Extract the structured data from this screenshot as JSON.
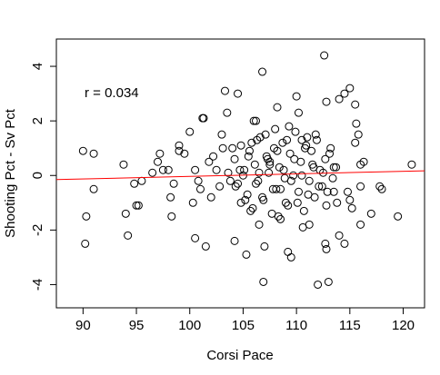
{
  "chart_data": {
    "type": "scatter",
    "x_label": "Corsi Pace",
    "y_label": "Shooting Pct - Sv Pct",
    "annotation": "r = 0.034",
    "annotation_color": "#ff0000",
    "xlim": [
      87.5,
      122
    ],
    "ylim": [
      -4.85,
      5.0
    ],
    "xticks": [
      90,
      95,
      100,
      105,
      110,
      115,
      120
    ],
    "yticks": [
      -4,
      -2,
      0,
      2,
      4
    ],
    "series": [
      {
        "color": "#000000",
        "x": [
          90,
          90.3,
          90.2,
          91,
          91,
          93.8,
          94,
          94.2,
          95,
          95.2,
          95.5,
          94.8,
          96.5,
          97,
          97.2,
          97.5,
          98,
          98.2,
          98.3,
          98.5,
          99,
          99,
          99.5,
          100,
          100.5,
          100.8,
          100.3,
          100.5,
          101,
          101.2,
          101.3,
          101.5,
          101.8,
          102,
          102.5,
          103,
          103.3,
          103.5,
          104,
          104.5,
          104.2,
          104.8,
          105,
          105.3,
          106,
          106.3,
          106.5,
          106.8,
          106.9,
          107,
          107.5,
          108,
          108.2,
          108.5,
          109,
          109.2,
          109.5,
          110,
          110.2,
          110.5,
          111,
          111.2,
          112,
          112.6,
          112.8,
          113,
          112.7,
          112.8,
          113.5,
          114,
          114.5,
          115,
          115.5,
          115.6,
          115.8,
          115.5,
          116,
          116.3,
          116,
          114.8,
          115,
          115.2,
          114.5,
          117,
          117.8,
          118,
          119.5,
          120.8,
          113.8,
          114,
          116,
          104.2,
          104.5,
          104.8,
          105.1,
          105.4,
          105.6,
          105.9,
          106.1,
          106.4,
          106.6,
          106.9,
          107.2,
          107.4,
          107.7,
          107.9,
          108.1,
          108.4,
          108.7,
          108.9,
          109.2,
          109.4,
          109.7,
          109.9,
          110.2,
          110.4,
          110.7,
          110.9,
          111.2,
          111.4,
          111.7,
          111.9,
          112.2,
          112.4,
          112.7,
          112.9,
          113.2,
          113.4,
          113.7,
          104.3,
          104.7,
          105.2,
          105.5,
          105.8,
          106.2,
          106.5,
          106.8,
          107.1,
          107.5,
          107.8,
          108.2,
          108.5,
          108.8,
          109.1,
          109.5,
          109.8,
          110.1,
          110.5,
          110.8,
          111.1,
          111.5,
          111.8,
          112.1,
          112.5,
          112.8,
          113.1,
          113.5,
          103.8,
          102.8,
          102.2,
          103.1,
          103.6,
          109.3,
          110.6,
          111.6,
          108.3,
          107.3,
          106.2,
          105.7
        ],
        "y": [
          0.9,
          -1.5,
          -2.5,
          0.8,
          -0.5,
          0.4,
          -1.4,
          -2.2,
          -1.1,
          -1.1,
          -0.2,
          -0.3,
          0.1,
          0.5,
          0.8,
          0.2,
          0.2,
          -0.8,
          -1.5,
          -0.3,
          1.1,
          0.9,
          0.8,
          1.6,
          0.2,
          -0.2,
          -1.0,
          -2.3,
          -0.5,
          2.1,
          2.1,
          -2.6,
          0.5,
          -0.8,
          0.2,
          1.5,
          3.1,
          2.3,
          1.0,
          3.0,
          -2.4,
          -1.0,
          0.0,
          -2.9,
          2.0,
          1.3,
          -1.8,
          3.8,
          -3.9,
          -2.6,
          0.5,
          1.7,
          2.5,
          -0.5,
          -1.0,
          -2.8,
          -3.0,
          2.9,
          2.3,
          1.3,
          1.4,
          -1.8,
          -4.0,
          4.4,
          2.7,
          -3.9,
          -2.5,
          -2.7,
          0.3,
          2.8,
          3.0,
          3.2,
          2.6,
          1.9,
          1.5,
          1.2,
          0.4,
          0.5,
          -0.4,
          -0.6,
          -0.9,
          -1.2,
          -2.5,
          -1.4,
          -0.4,
          -0.5,
          -1.5,
          0.4,
          -1.0,
          -2.2,
          -1.8,
          0.6,
          -0.3,
          1.1,
          0.2,
          -0.7,
          0.9,
          -1.2,
          0.4,
          -0.2,
          1.4,
          -0.9,
          0.7,
          0.1,
          -1.4,
          1.0,
          -0.5,
          0.3,
          1.2,
          -0.1,
          -1.1,
          0.8,
          0.0,
          1.6,
          -0.6,
          0.5,
          -1.3,
          1.1,
          -0.2,
          0.9,
          -0.8,
          1.3,
          0.2,
          -0.4,
          0.6,
          -0.6,
          1.0,
          -0.1,
          0.3,
          -0.4,
          0.2,
          -0.9,
          0.7,
          1.2,
          -0.3,
          0.1,
          -0.8,
          1.5,
          0.4,
          -0.5,
          0.9,
          -1.6,
          0.2,
          1.3,
          -0.2,
          0.6,
          -1.0,
          0.0,
          1.0,
          -0.7,
          0.4,
          1.5,
          -0.4,
          0.1,
          -1.1,
          0.8,
          -0.6,
          -0.2,
          -0.4,
          0.7,
          1.0,
          0.1,
          1.8,
          -1.9,
          0.3,
          -1.5,
          0.6,
          2.0,
          -1.3
        ]
      },
      {
        "color": "#ff0000",
        "x": [
          87.5,
          122
        ],
        "y": [
          -0.15,
          0.17
        ]
      }
    ]
  }
}
